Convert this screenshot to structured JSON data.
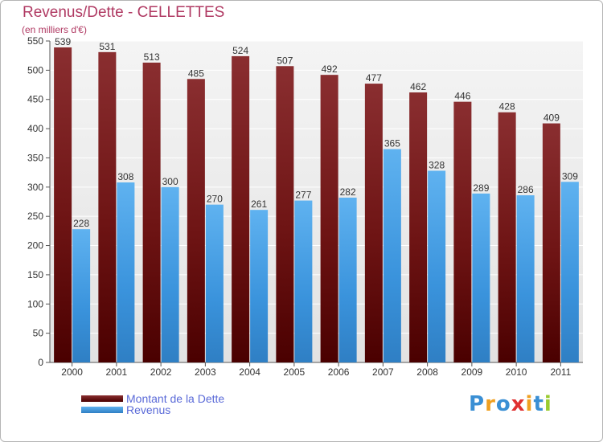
{
  "chart_title": "Revenus/Dette - CELLETTES",
  "chart_subtitle": "(en milliers d'€)",
  "logo_text": "Proxiti",
  "colors": {
    "dette": "#7a1a1a",
    "revenus": "#3a93dc",
    "title": "#b03a63",
    "legend_text": "#5a6ad8"
  },
  "chart_data": {
    "type": "bar",
    "title": "Revenus/Dette - CELLETTES",
    "subtitle": "(en milliers d'€)",
    "xlabel": "",
    "ylabel": "",
    "ylim": [
      0,
      550
    ],
    "yticks": [
      0,
      50,
      100,
      150,
      200,
      250,
      300,
      350,
      400,
      450,
      500,
      550
    ],
    "grid": true,
    "legend_position": "bottom-left",
    "categories": [
      "2000",
      "2001",
      "2002",
      "2003",
      "2004",
      "2005",
      "2006",
      "2007",
      "2008",
      "2009",
      "2010",
      "2011"
    ],
    "series": [
      {
        "name": "Montant de la Dette",
        "color": "#7a1a1a",
        "values": [
          539,
          531,
          513,
          485,
          524,
          507,
          492,
          477,
          462,
          446,
          428,
          409
        ]
      },
      {
        "name": "Revenus",
        "color": "#3a93dc",
        "values": [
          228,
          308,
          300,
          270,
          261,
          277,
          282,
          365,
          328,
          289,
          286,
          309
        ]
      }
    ]
  }
}
